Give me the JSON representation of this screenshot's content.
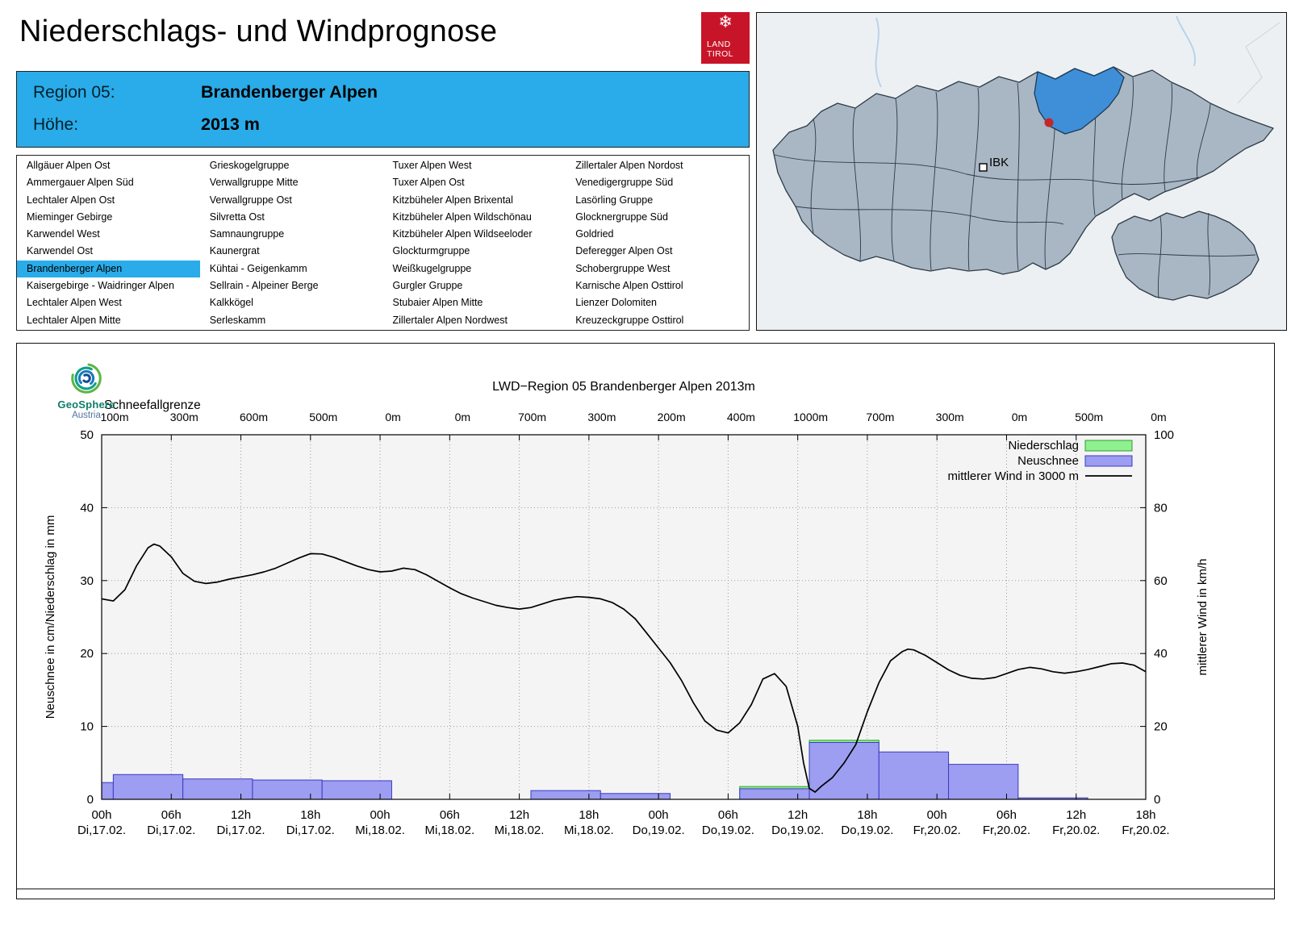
{
  "colors": {
    "accent": "#29ace9",
    "logo_red": "#c81428",
    "map_land": "#a9b6c4",
    "map_highlight": "#3f8fd8",
    "plot_bg": "#f4f4f4",
    "bar_snow_fill": "#9d9df1",
    "bar_snow_border": "#3b3bc4",
    "bar_precip_fill": "#8ef08e",
    "bar_precip_border": "#2f9e2f",
    "wind_line": "#000000"
  },
  "header": {
    "title": "Niederschlags- und Windprognose",
    "snowflake": "❄",
    "logo_line1": "LAND",
    "logo_line2": "TIROL"
  },
  "region_header": {
    "region_label": "Region 05:",
    "region_name": "Brandenberger Alpen",
    "altitude_label": "Höhe:",
    "altitude_value": "2013 m"
  },
  "region_list": {
    "selected": "Brandenberger Alpen",
    "columns": [
      [
        "Allgäuer Alpen Ost",
        "Ammergauer Alpen Süd",
        "Lechtaler Alpen Ost",
        "Mieminger Gebirge",
        "Karwendel West",
        "Karwendel Ost",
        "Brandenberger Alpen",
        "Kaisergebirge - Waidringer Alpen",
        "Lechtaler Alpen West",
        "Lechtaler Alpen Mitte"
      ],
      [
        "Grieskogelgruppe",
        "Verwallgruppe Mitte",
        "Verwallgruppe Ost",
        "Silvretta Ost",
        "Samnaungruppe",
        "Kaunergrat",
        "Kühtai - Geigenkamm",
        "Sellrain - Alpeiner Berge",
        "Kalkkögel",
        "Serleskamm"
      ],
      [
        "Tuxer Alpen West",
        "Tuxer Alpen Ost",
        "Kitzbüheler Alpen Brixental",
        "Kitzbüheler Alpen Wildschönau",
        "Kitzbüheler Alpen Wildseeloder",
        "Glockturmgruppe",
        "Weißkugelgruppe",
        "Gurgler Gruppe",
        "Stubaier Alpen Mitte",
        "Zillertaler Alpen Nordwest"
      ],
      [
        "Zillertaler Alpen Nordost",
        "Venedigergruppe Süd",
        "Lasörling Gruppe",
        "Glocknergruppe Süd",
        "Goldried",
        "Deferegger Alpen Ost",
        "Schobergruppe West",
        "Karnische Alpen Osttirol",
        "Lienzer Dolomiten",
        "Kreuzeckgruppe Osttirol"
      ]
    ]
  },
  "map": {
    "city_label": "IBK"
  },
  "geosphere": {
    "name": "GeoSphere",
    "country": "Austria"
  },
  "chart": {
    "title": "LWD−Region 05 Brandenberger Alpen 2013m",
    "snowline_label": "Schneefallgrenze",
    "y_left_label": "Neuschnee in cm/Niederschlag in mm",
    "y_right_label": "mittlerer Wind in km/h",
    "legend": [
      {
        "label": "Niederschlag",
        "type": "box",
        "fill_key": "bar_precip_fill",
        "stroke_key": "bar_precip_border"
      },
      {
        "label": "Neuschnee",
        "type": "box",
        "fill_key": "bar_snow_fill",
        "stroke_key": "bar_snow_border"
      },
      {
        "label": "mittlerer Wind in 3000 m",
        "type": "line"
      }
    ]
  },
  "chart_data": {
    "type": "bar+line",
    "title": "LWD−Region 05 Brandenberger Alpen 2013m",
    "x_range_hours": [
      0,
      90
    ],
    "ylim_left": [
      0,
      50
    ],
    "ylim_right": [
      0,
      100
    ],
    "y_left_ticks": [
      0,
      10,
      20,
      30,
      40,
      50
    ],
    "y_right_ticks": [
      0,
      20,
      40,
      60,
      80,
      100
    ],
    "x_ticks": [
      {
        "hour": "00h",
        "date": "Di,17.02."
      },
      {
        "hour": "06h",
        "date": "Di,17.02."
      },
      {
        "hour": "12h",
        "date": "Di,17.02."
      },
      {
        "hour": "18h",
        "date": "Di,17.02."
      },
      {
        "hour": "00h",
        "date": "Mi,18.02."
      },
      {
        "hour": "06h",
        "date": "Mi,18.02."
      },
      {
        "hour": "12h",
        "date": "Mi,18.02."
      },
      {
        "hour": "18h",
        "date": "Mi,18.02."
      },
      {
        "hour": "00h",
        "date": "Do,19.02."
      },
      {
        "hour": "06h",
        "date": "Do,19.02."
      },
      {
        "hour": "12h",
        "date": "Do,19.02."
      },
      {
        "hour": "18h",
        "date": "Do,19.02."
      },
      {
        "hour": "00h",
        "date": "Fr,20.02."
      },
      {
        "hour": "06h",
        "date": "Fr,20.02."
      },
      {
        "hour": "12h",
        "date": "Fr,20.02."
      },
      {
        "hour": "18h",
        "date": "Fr,20.02."
      }
    ],
    "snowline_values": [
      "100m",
      "300m",
      "600m",
      "500m",
      "0m",
      "0m",
      "700m",
      "300m",
      "200m",
      "400m",
      "1000m",
      "700m",
      "300m",
      "0m",
      "500m",
      "0m"
    ],
    "neuschnee_cm_bars": [
      [
        0,
        1,
        2.3
      ],
      [
        1,
        7,
        3.4
      ],
      [
        7,
        13,
        2.8
      ],
      [
        13,
        19,
        2.65
      ],
      [
        19,
        25,
        2.55
      ],
      [
        37,
        43,
        1.2
      ],
      [
        43,
        49,
        0.8
      ],
      [
        55,
        61,
        1.45
      ],
      [
        61,
        67,
        7.8
      ],
      [
        67,
        73,
        6.5
      ],
      [
        73,
        79,
        4.8
      ],
      [
        79,
        85,
        0.2
      ]
    ],
    "niederschlag_mm_bars": [
      [
        55,
        61,
        1.75
      ],
      [
        61,
        67,
        8.1
      ]
    ],
    "wind_kmh_points": [
      [
        0,
        55
      ],
      [
        1,
        54.4
      ],
      [
        2,
        57.5
      ],
      [
        3,
        64
      ],
      [
        4,
        69
      ],
      [
        4.5,
        70
      ],
      [
        5,
        69.5
      ],
      [
        6,
        66.5
      ],
      [
        7,
        62
      ],
      [
        8,
        59.8
      ],
      [
        9,
        59.2
      ],
      [
        10,
        59.6
      ],
      [
        11,
        60.4
      ],
      [
        12,
        61
      ],
      [
        13,
        61.6
      ],
      [
        14,
        62.4
      ],
      [
        15,
        63.4
      ],
      [
        16,
        64.8
      ],
      [
        17,
        66.2
      ],
      [
        18,
        67.4
      ],
      [
        19,
        67.3
      ],
      [
        20,
        66.4
      ],
      [
        21,
        65.2
      ],
      [
        22,
        64
      ],
      [
        23,
        63
      ],
      [
        24,
        62.4
      ],
      [
        25,
        62.6
      ],
      [
        26,
        63.4
      ],
      [
        27,
        63
      ],
      [
        28,
        61.6
      ],
      [
        29,
        59.8
      ],
      [
        30,
        58
      ],
      [
        31,
        56.4
      ],
      [
        32,
        55.2
      ],
      [
        33,
        54.2
      ],
      [
        34,
        53.2
      ],
      [
        35,
        52.6
      ],
      [
        36,
        52.2
      ],
      [
        37,
        52.6
      ],
      [
        38,
        53.6
      ],
      [
        39,
        54.6
      ],
      [
        40,
        55.2
      ],
      [
        41,
        55.6
      ],
      [
        42,
        55.4
      ],
      [
        43,
        55
      ],
      [
        44,
        54
      ],
      [
        45,
        52.2
      ],
      [
        46,
        49.5
      ],
      [
        47,
        45.5
      ],
      [
        48,
        41.5
      ],
      [
        49,
        37.5
      ],
      [
        50,
        32.5
      ],
      [
        51,
        26.5
      ],
      [
        52,
        21.5
      ],
      [
        53,
        19
      ],
      [
        54,
        18.2
      ],
      [
        55,
        21
      ],
      [
        56,
        26
      ],
      [
        57,
        33
      ],
      [
        58,
        34.5
      ],
      [
        59,
        31
      ],
      [
        60,
        20
      ],
      [
        60.5,
        10
      ],
      [
        61,
        3
      ],
      [
        61.5,
        2
      ],
      [
        62,
        3.5
      ],
      [
        63,
        6
      ],
      [
        64,
        10
      ],
      [
        65,
        15
      ],
      [
        66,
        24
      ],
      [
        67,
        32
      ],
      [
        68,
        38
      ],
      [
        69,
        40.5
      ],
      [
        69.5,
        41.2
      ],
      [
        70,
        41
      ],
      [
        71,
        39.5
      ],
      [
        72,
        37.5
      ],
      [
        73,
        35.5
      ],
      [
        74,
        34
      ],
      [
        75,
        33.2
      ],
      [
        76,
        33
      ],
      [
        77,
        33.4
      ],
      [
        78,
        34.5
      ],
      [
        79,
        35.6
      ],
      [
        80,
        36.2
      ],
      [
        81,
        35.8
      ],
      [
        82,
        35
      ],
      [
        83,
        34.6
      ],
      [
        84,
        35
      ],
      [
        85,
        35.6
      ],
      [
        86,
        36.4
      ],
      [
        87,
        37.2
      ],
      [
        88,
        37.4
      ],
      [
        89,
        36.8
      ],
      [
        90,
        35
      ]
    ]
  }
}
